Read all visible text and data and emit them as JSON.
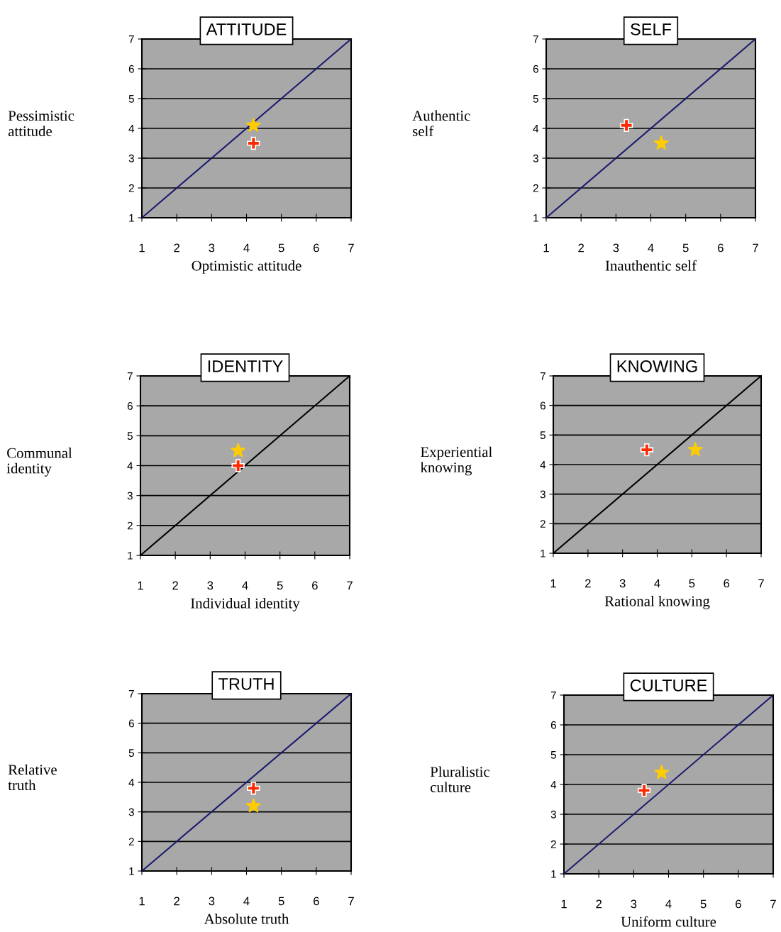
{
  "chart_data": [
    {
      "type": "scatter",
      "title": "ATTITUDE",
      "xlabel": "Optimistic attitude",
      "ylabel": "Pessimistic attitude",
      "xlim": [
        1,
        7
      ],
      "ylim": [
        1,
        7
      ],
      "xticks": [
        1,
        2,
        3,
        4,
        5,
        6,
        7
      ],
      "yticks": [
        1,
        2,
        3,
        4,
        5,
        6,
        7
      ],
      "grid": "y",
      "legend": false,
      "series": [
        {
          "type": "line",
          "color": "#1a1a6e",
          "x": [
            1,
            7
          ],
          "values": [
            1,
            7
          ],
          "marker": "none"
        },
        {
          "color": "#ff2a00",
          "x": [
            4.2
          ],
          "values": [
            3.5
          ],
          "marker": "cross"
        },
        {
          "color": "#ffcc00",
          "x": [
            4.2
          ],
          "values": [
            4.1
          ],
          "marker": "star"
        }
      ]
    },
    {
      "type": "scatter",
      "title": "SELF",
      "xlabel": "Inauthentic self",
      "ylabel": "Authentic self",
      "xlim": [
        1,
        7
      ],
      "ylim": [
        1,
        7
      ],
      "xticks": [
        1,
        2,
        3,
        4,
        5,
        6,
        7
      ],
      "yticks": [
        1,
        2,
        3,
        4,
        5,
        6,
        7
      ],
      "grid": "y",
      "legend": false,
      "series": [
        {
          "type": "line",
          "color": "#1a1a6e",
          "x": [
            1,
            7
          ],
          "values": [
            1,
            7
          ],
          "marker": "none"
        },
        {
          "color": "#ff2a00",
          "x": [
            3.3
          ],
          "values": [
            4.1
          ],
          "marker": "cross"
        },
        {
          "color": "#ffcc00",
          "x": [
            4.3
          ],
          "values": [
            3.5
          ],
          "marker": "star"
        }
      ]
    },
    {
      "type": "scatter",
      "title": "IDENTITY",
      "xlabel": "Individual identity",
      "ylabel": "Communal identity",
      "xlim": [
        1,
        7
      ],
      "ylim": [
        1,
        7
      ],
      "xticks": [
        1,
        2,
        3,
        4,
        5,
        6,
        7
      ],
      "yticks": [
        1,
        2,
        3,
        4,
        5,
        6,
        7
      ],
      "grid": "y",
      "legend": false,
      "series": [
        {
          "type": "line",
          "color": "#000000",
          "x": [
            1,
            7
          ],
          "values": [
            1,
            7
          ]
        },
        {
          "color": "#ff2a00",
          "x": [
            3.8
          ],
          "values": [
            4.0
          ],
          "marker": "cross"
        },
        {
          "color": "#ffcc00",
          "x": [
            3.8
          ],
          "values": [
            4.5
          ],
          "marker": "star"
        }
      ]
    },
    {
      "type": "scatter",
      "title": "KNOWING",
      "xlabel": "Rational knowing",
      "ylabel": "Experiential knowing",
      "xlim": [
        1,
        7
      ],
      "ylim": [
        1,
        7
      ],
      "xticks": [
        1,
        2,
        3,
        4,
        5,
        6,
        7
      ],
      "yticks": [
        1,
        2,
        3,
        4,
        5,
        6,
        7
      ],
      "grid": "y",
      "legend": false,
      "series": [
        {
          "type": "line",
          "color": "#000000",
          "x": [
            1,
            7
          ],
          "values": [
            1,
            7
          ]
        },
        {
          "color": "#ff2a00",
          "x": [
            3.7
          ],
          "values": [
            4.5
          ],
          "marker": "cross"
        },
        {
          "color": "#ffcc00",
          "x": [
            5.1
          ],
          "values": [
            4.5
          ],
          "marker": "star"
        }
      ]
    },
    {
      "type": "scatter",
      "title": "TRUTH",
      "xlabel": "Absolute truth",
      "ylabel": "Relative truth",
      "xlim": [
        1,
        7
      ],
      "ylim": [
        1,
        7
      ],
      "xticks": [
        1,
        2,
        3,
        4,
        5,
        6,
        7
      ],
      "yticks": [
        1,
        2,
        3,
        4,
        5,
        6,
        7
      ],
      "grid": "y",
      "legend": false,
      "series": [
        {
          "type": "line",
          "color": "#1a1a6e",
          "x": [
            1,
            7
          ],
          "values": [
            1,
            7
          ],
          "marker": "none"
        },
        {
          "color": "#ff2a00",
          "x": [
            4.2
          ],
          "values": [
            3.8
          ],
          "marker": "cross"
        },
        {
          "color": "#ffcc00",
          "x": [
            4.2
          ],
          "values": [
            3.2
          ],
          "marker": "star"
        }
      ]
    },
    {
      "type": "scatter",
      "title": "CULTURE",
      "xlabel": "Uniform culture",
      "ylabel": "Pluralistic culture",
      "xlim": [
        1,
        7
      ],
      "ylim": [
        1,
        7
      ],
      "xticks": [
        1,
        2,
        3,
        4,
        5,
        6,
        7
      ],
      "yticks": [
        1,
        2,
        3,
        4,
        5,
        6,
        7
      ],
      "grid": "y",
      "legend": false,
      "series": [
        {
          "type": "line",
          "color": "#1a1a6e",
          "x": [
            1,
            7
          ],
          "values": [
            1,
            7
          ],
          "marker": "none"
        },
        {
          "color": "#ff2a00",
          "x": [
            3.3
          ],
          "values": [
            3.8
          ],
          "marker": "cross"
        },
        {
          "color": "#ffcc00",
          "x": [
            3.8
          ],
          "values": [
            4.4
          ],
          "marker": "star"
        }
      ]
    }
  ]
}
